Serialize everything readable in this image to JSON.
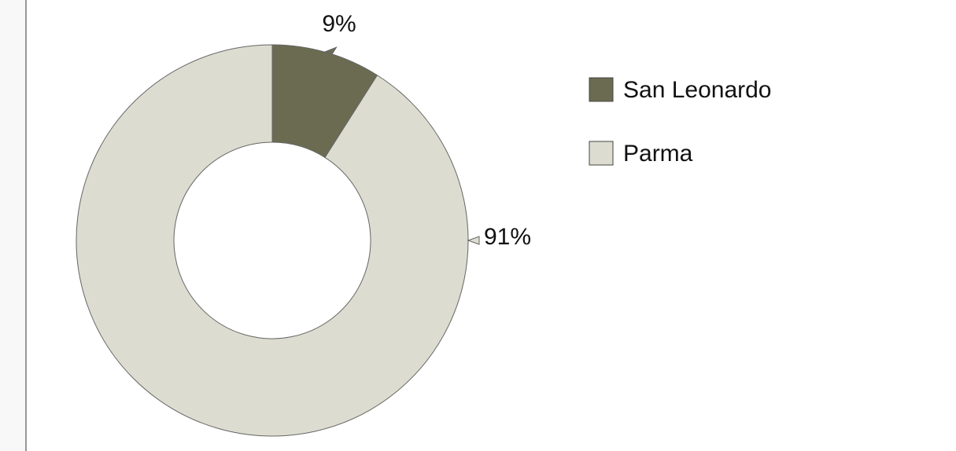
{
  "chart_data": {
    "type": "donut",
    "categories": [
      "San Leonardo",
      "Parma"
    ],
    "values": [
      9,
      91
    ],
    "value_labels": [
      "9%",
      "91%"
    ],
    "colors": [
      "#6b6b52",
      "#dcdcd0"
    ]
  }
}
